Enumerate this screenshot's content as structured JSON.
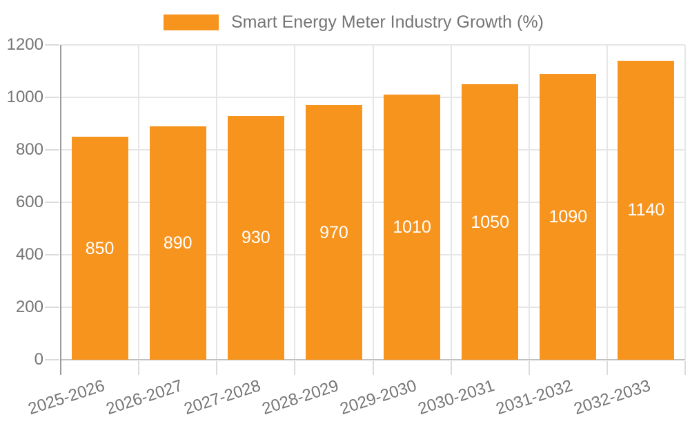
{
  "chart_data": {
    "type": "bar",
    "title": "",
    "legend_label": "Smart Energy Meter Industry Growth (%)",
    "categories": [
      "2025-2026",
      "2026-2027",
      "2027-2028",
      "2028-2029",
      "2029-2030",
      "2030-2031",
      "2031-2032",
      "2032-2033"
    ],
    "values": [
      850,
      890,
      930,
      970,
      1010,
      1050,
      1090,
      1140
    ],
    "xlabel": "",
    "ylabel": "",
    "ylim": [
      0,
      1200
    ],
    "yticks": [
      0,
      200,
      400,
      600,
      800,
      1000,
      1200
    ],
    "grid": true,
    "legend_position": "top-center",
    "bar_label_position": "center",
    "x_tick_rotation_deg": -18,
    "colors": {
      "bar": "#F7941E",
      "grid": "#E6E6E6",
      "axis_line": "#9B9B9B",
      "baseline": "#C0C0C0",
      "tick": "#DBDBDB",
      "text": "#757575",
      "bar_label": "#FFFFFF",
      "background": "#FFFFFF"
    }
  }
}
